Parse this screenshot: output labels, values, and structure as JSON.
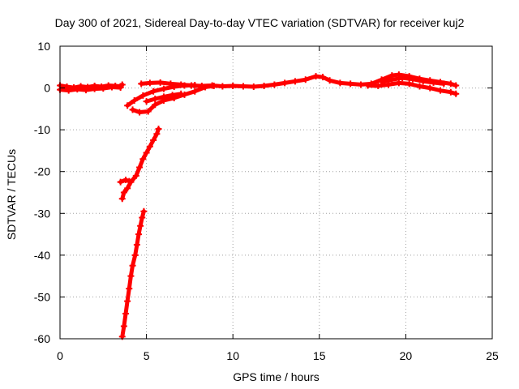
{
  "chart_data": {
    "type": "scatter",
    "title": "Day 300 of 2021, Sidereal Day-to-day VTEC variation (SDTVAR) for receiver kuj2",
    "xlabel": "GPS time / hours",
    "ylabel": "SDTVAR / TECUs",
    "xlim": [
      0,
      25
    ],
    "ylim": [
      -60,
      10
    ],
    "xticks": [
      "0",
      "5",
      "10",
      "15",
      "20",
      "25"
    ],
    "yticks": [
      "-60",
      "-50",
      "-40",
      "-30",
      "-20",
      "-10",
      "0",
      "10"
    ],
    "grid": true,
    "marker_color": "#ff0000",
    "series": [
      {
        "segments": [
          [
            [
              0.0,
              0.6
            ],
            [
              0.4,
              0.3
            ],
            [
              0.8,
              0.1
            ],
            [
              1.2,
              0.4
            ],
            [
              1.6,
              0.2
            ],
            [
              2.0,
              0.5
            ],
            [
              2.4,
              0.3
            ],
            [
              2.8,
              0.6
            ],
            [
              3.2,
              0.5
            ],
            [
              3.5,
              0.4
            ],
            [
              3.6,
              0.8
            ]
          ],
          [
            [
              0.0,
              -0.4
            ],
            [
              0.5,
              -0.6
            ],
            [
              1.0,
              -0.3
            ],
            [
              1.5,
              -0.5
            ],
            [
              2.0,
              -0.2
            ],
            [
              2.5,
              -0.1
            ],
            [
              3.0,
              0.2
            ],
            [
              3.5,
              0.1
            ]
          ],
          [
            [
              4.7,
              1.0
            ],
            [
              5.2,
              1.2
            ],
            [
              5.8,
              1.3
            ],
            [
              6.4,
              1.0
            ],
            [
              7.0,
              0.8
            ],
            [
              7.6,
              0.6
            ],
            [
              8.2,
              0.5
            ],
            [
              8.8,
              0.6
            ],
            [
              9.4,
              0.4
            ],
            [
              10.0,
              0.5
            ],
            [
              10.6,
              0.4
            ],
            [
              11.2,
              0.3
            ],
            [
              11.8,
              0.5
            ],
            [
              12.4,
              0.8
            ],
            [
              13.0,
              1.2
            ],
            [
              13.6,
              1.6
            ],
            [
              14.2,
              2.0
            ],
            [
              14.8,
              2.8
            ],
            [
              15.2,
              2.6
            ],
            [
              15.6,
              1.8
            ],
            [
              16.2,
              1.2
            ],
            [
              16.8,
              1.0
            ],
            [
              17.4,
              0.8
            ],
            [
              18.0,
              1.0
            ],
            [
              18.6,
              2.0
            ],
            [
              19.2,
              3.0
            ],
            [
              19.6,
              3.2
            ],
            [
              20.2,
              2.8
            ],
            [
              20.8,
              2.2
            ],
            [
              21.4,
              1.8
            ],
            [
              22.0,
              1.4
            ],
            [
              22.6,
              1.0
            ],
            [
              22.9,
              0.6
            ]
          ],
          [
            [
              17.8,
              0.6
            ],
            [
              18.4,
              0.5
            ],
            [
              19.0,
              0.8
            ],
            [
              19.6,
              1.2
            ],
            [
              20.2,
              1.0
            ],
            [
              20.8,
              0.4
            ],
            [
              21.4,
              0.0
            ],
            [
              22.0,
              -0.6
            ],
            [
              22.6,
              -1.0
            ],
            [
              22.9,
              -1.4
            ]
          ],
          [
            [
              18.6,
              1.5
            ],
            [
              19.2,
              2.0
            ],
            [
              19.8,
              2.4
            ],
            [
              20.4,
              2.1
            ],
            [
              21.0,
              1.6
            ],
            [
              21.6,
              1.3
            ],
            [
              22.2,
              1.0
            ]
          ],
          [
            [
              3.9,
              -4.2
            ],
            [
              4.3,
              -3.0
            ],
            [
              4.8,
              -1.8
            ],
            [
              5.4,
              -0.8
            ],
            [
              6.0,
              -0.2
            ],
            [
              6.6,
              0.3
            ],
            [
              7.2,
              0.6
            ],
            [
              7.8,
              0.7
            ]
          ],
          [
            [
              4.2,
              -5.2
            ],
            [
              4.6,
              -5.8
            ],
            [
              5.1,
              -5.6
            ],
            [
              5.5,
              -4.0
            ],
            [
              6.0,
              -3.0
            ],
            [
              6.6,
              -2.4
            ],
            [
              7.2,
              -1.6
            ],
            [
              7.8,
              -0.8
            ],
            [
              8.4,
              0.2
            ],
            [
              8.9,
              0.5
            ]
          ],
          [
            [
              5.0,
              -3.2
            ],
            [
              5.5,
              -2.6
            ],
            [
              6.0,
              -2.1
            ],
            [
              6.5,
              -1.7
            ],
            [
              7.0,
              -1.4
            ]
          ]
        ]
      },
      {
        "segments": [
          [
            [
              3.6,
              -26.5
            ],
            [
              3.7,
              -25.0
            ],
            [
              3.9,
              -24.0
            ],
            [
              4.1,
              -22.5
            ],
            [
              4.4,
              -21.0
            ],
            [
              4.6,
              -19.0
            ],
            [
              4.8,
              -17.0
            ],
            [
              5.0,
              -15.5
            ],
            [
              5.2,
              -14.0
            ],
            [
              5.4,
              -12.5
            ],
            [
              5.6,
              -11.0
            ],
            [
              5.7,
              -9.8
            ]
          ],
          [
            [
              3.5,
              -22.5
            ],
            [
              3.8,
              -22.0
            ],
            [
              4.0,
              -22.3
            ]
          ],
          [
            [
              3.6,
              -59.5
            ],
            [
              3.7,
              -57.0
            ],
            [
              3.8,
              -54.0
            ],
            [
              3.9,
              -51.0
            ],
            [
              4.0,
              -48.0
            ],
            [
              4.1,
              -45.0
            ],
            [
              4.2,
              -42.5
            ],
            [
              4.35,
              -40.0
            ],
            [
              4.45,
              -37.5
            ],
            [
              4.55,
              -35.0
            ],
            [
              4.65,
              -33.0
            ],
            [
              4.75,
              -31.0
            ],
            [
              4.85,
              -29.5
            ]
          ]
        ]
      }
    ]
  }
}
